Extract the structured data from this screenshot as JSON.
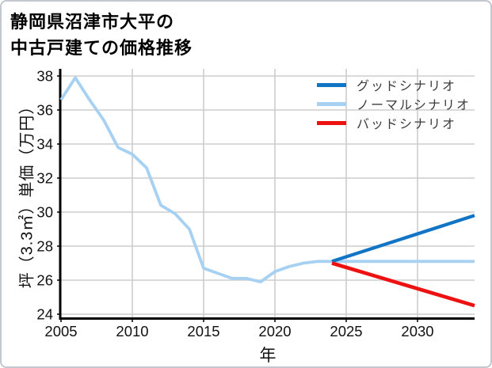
{
  "chart_data": {
    "type": "line",
    "title_lines": [
      "静岡県沼津市大平の",
      "中古戸建ての価格推移"
    ],
    "xlabel": "年",
    "ylabel": "坪（3.3㎡）単価（万円）",
    "xlim": [
      2005,
      2034
    ],
    "ylim": [
      23.767,
      38.419
    ],
    "xticks": [
      2005,
      2010,
      2015,
      2020,
      2025,
      2030
    ],
    "yticks": [
      24,
      26,
      28,
      30,
      32,
      34,
      36,
      38
    ],
    "grid": true,
    "legend_position": "upper right",
    "colors": {
      "grid": "#cdcdcd",
      "spine": "#000000",
      "tick_text": "#111111",
      "good": "#1274c5",
      "normal": "#a7d1f2",
      "bad": "#ee1111"
    },
    "series": [
      {
        "name": "グッドシナリオ",
        "color": "#1274c5",
        "width": 4.2,
        "points": [
          [
            2024,
            27.1
          ],
          [
            2034,
            29.8
          ]
        ]
      },
      {
        "name": "ノーマルシナリオ",
        "color": "#a7d1f2",
        "width": 3.8,
        "points": [
          [
            2005,
            36.6
          ],
          [
            2006,
            37.9
          ],
          [
            2007,
            36.6
          ],
          [
            2008,
            35.4
          ],
          [
            2009,
            33.8
          ],
          [
            2010,
            33.4
          ],
          [
            2011,
            32.6
          ],
          [
            2012,
            30.4
          ],
          [
            2013,
            29.9
          ],
          [
            2014,
            29.0
          ],
          [
            2015,
            26.7
          ],
          [
            2016,
            26.4
          ],
          [
            2017,
            26.1
          ],
          [
            2018,
            26.1
          ],
          [
            2019,
            25.9
          ],
          [
            2020,
            26.5
          ],
          [
            2021,
            26.8
          ],
          [
            2022,
            27.0
          ],
          [
            2023,
            27.1
          ],
          [
            2024,
            27.1
          ],
          [
            2034,
            27.1
          ]
        ]
      },
      {
        "name": "バッドシナリオ",
        "color": "#ee1111",
        "width": 4.6,
        "points": [
          [
            2024,
            27.0
          ],
          [
            2034,
            24.5
          ]
        ]
      }
    ]
  }
}
